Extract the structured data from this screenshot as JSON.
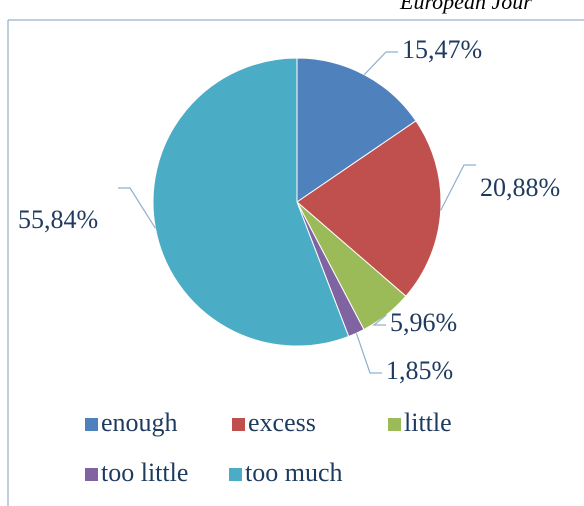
{
  "chart_data": {
    "type": "pie",
    "annotation": "European Jour",
    "categories": [
      "enough",
      "excess",
      "little",
      "too little",
      "too much"
    ],
    "values": [
      15.47,
      20.88,
      5.96,
      1.85,
      55.84
    ],
    "value_labels": [
      "15,47%",
      "20,88%",
      "5,96%",
      "1,85%",
      "55,84%"
    ],
    "colors": [
      "#4f81bd",
      "#c0504d",
      "#9bbb59",
      "#8064a2",
      "#4bacc6"
    ],
    "legend": "bottom"
  }
}
